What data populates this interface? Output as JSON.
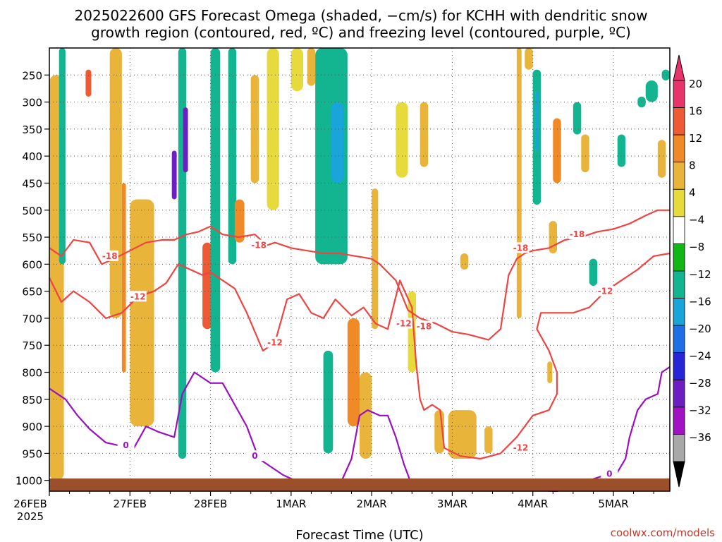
{
  "chart_data": {
    "type": "heatmap",
    "title_line1": "2025022600 GFS Forecast Omega (shaded, −cm/s) for KCHH with dendritic snow",
    "title_line2": "growth region (contoured, red, ºC) and freezing level (contoured, purple, ºC)",
    "xlabel": "Forecast Time (UTC)",
    "credit": "coolwx.com/models",
    "x_ticks": [
      "26FEB",
      "27FEB",
      "28FEB",
      "1MAR",
      "2MAR",
      "3MAR",
      "4MAR",
      "5MAR"
    ],
    "x_year": "2025",
    "x_range_days": [
      0,
      7.7
    ],
    "y_ticks": [
      250,
      300,
      350,
      400,
      450,
      500,
      550,
      600,
      650,
      700,
      750,
      800,
      850,
      900,
      950,
      1000
    ],
    "y_range_hpa": [
      200,
      1020
    ],
    "colorbar": {
      "labels": [
        "20",
        "16",
        "12",
        "8",
        "4",
        "−4",
        "−8",
        "−12",
        "−16",
        "−20",
        "−24",
        "−28",
        "−32",
        "−36"
      ],
      "colors": [
        "#e8336b",
        "#ee5a33",
        "#f08a26",
        "#e8b43a",
        "#e6da3c",
        "#ffffff",
        "#11b717",
        "#12b590",
        "#19a5d9",
        "#1e6fe6",
        "#2626d8",
        "#6c1ec2",
        "#a012c4",
        "#a8a8a8"
      ]
    },
    "shaded_regions": [
      {
        "x0": 0.0,
        "x1": 0.18,
        "p0": 250,
        "p1": 1000,
        "value": 6
      },
      {
        "x0": 0.12,
        "x1": 0.2,
        "p0": 200,
        "p1": 600,
        "value": -10
      },
      {
        "x0": 0.45,
        "x1": 0.52,
        "p0": 240,
        "p1": 290,
        "value": 14
      },
      {
        "x0": 0.75,
        "x1": 0.9,
        "p0": 200,
        "p1": 700,
        "value": 6
      },
      {
        "x0": 0.9,
        "x1": 0.95,
        "p0": 450,
        "p1": 800,
        "value": 10
      },
      {
        "x0": 1.0,
        "x1": 1.3,
        "p0": 480,
        "p1": 900,
        "value": 6
      },
      {
        "x0": 1.52,
        "x1": 1.58,
        "p0": 390,
        "p1": 480,
        "value": -24
      },
      {
        "x0": 1.6,
        "x1": 1.7,
        "p0": 200,
        "p1": 960,
        "value": -10
      },
      {
        "x0": 1.66,
        "x1": 1.72,
        "p0": 310,
        "p1": 430,
        "value": -26
      },
      {
        "x0": 1.9,
        "x1": 2.02,
        "p0": 560,
        "p1": 720,
        "value": 14
      },
      {
        "x0": 2.0,
        "x1": 2.12,
        "p0": 200,
        "p1": 800,
        "value": -10
      },
      {
        "x0": 2.22,
        "x1": 2.32,
        "p0": 200,
        "p1": 600,
        "value": -8
      },
      {
        "x0": 2.3,
        "x1": 2.42,
        "p0": 480,
        "p1": 560,
        "value": 12
      },
      {
        "x0": 2.5,
        "x1": 2.6,
        "p0": 250,
        "p1": 450,
        "value": 6
      },
      {
        "x0": 2.7,
        "x1": 2.85,
        "p0": 200,
        "p1": 500,
        "value": 5
      },
      {
        "x0": 3.0,
        "x1": 3.15,
        "p0": 200,
        "p1": 280,
        "value": 5
      },
      {
        "x0": 3.2,
        "x1": 3.3,
        "p0": 200,
        "p1": 270,
        "value": 6
      },
      {
        "x0": 3.35,
        "x1": 3.45,
        "p0": 250,
        "p1": 330,
        "value": 10
      },
      {
        "x0": 3.3,
        "x1": 3.7,
        "p0": 200,
        "p1": 600,
        "value": -10
      },
      {
        "x0": 3.5,
        "x1": 3.65,
        "p0": 300,
        "p1": 450,
        "value": -14
      },
      {
        "x0": 3.4,
        "x1": 3.52,
        "p0": 760,
        "p1": 950,
        "value": -8
      },
      {
        "x0": 3.7,
        "x1": 3.85,
        "p0": 700,
        "p1": 900,
        "value": 10
      },
      {
        "x0": 3.85,
        "x1": 4.0,
        "p0": 800,
        "p1": 960,
        "value": 6
      },
      {
        "x0": 4.0,
        "x1": 4.08,
        "p0": 460,
        "p1": 720,
        "value": 6
      },
      {
        "x0": 4.3,
        "x1": 4.45,
        "p0": 300,
        "p1": 440,
        "value": 5
      },
      {
        "x0": 4.45,
        "x1": 4.55,
        "p0": 650,
        "p1": 800,
        "value": 5
      },
      {
        "x0": 4.6,
        "x1": 4.7,
        "p0": 300,
        "p1": 420,
        "value": 6
      },
      {
        "x0": 4.78,
        "x1": 4.9,
        "p0": 870,
        "p1": 950,
        "value": 6
      },
      {
        "x0": 5.1,
        "x1": 5.2,
        "p0": 580,
        "p1": 610,
        "value": 6
      },
      {
        "x0": 4.95,
        "x1": 5.3,
        "p0": 870,
        "p1": 960,
        "value": 6
      },
      {
        "x0": 5.4,
        "x1": 5.5,
        "p0": 900,
        "p1": 950,
        "value": 6
      },
      {
        "x0": 5.9,
        "x1": 6.0,
        "p0": 200,
        "p1": 240,
        "value": 6
      },
      {
        "x0": 5.8,
        "x1": 5.86,
        "p0": 200,
        "p1": 700,
        "value": 6
      },
      {
        "x0": 6.0,
        "x1": 6.1,
        "p0": 240,
        "p1": 490,
        "value": -10
      },
      {
        "x0": 6.03,
        "x1": 6.07,
        "p0": 280,
        "p1": 390,
        "value": -14
      },
      {
        "x0": 6.18,
        "x1": 6.24,
        "p0": 780,
        "p1": 820,
        "value": 8
      },
      {
        "x0": 6.2,
        "x1": 6.3,
        "p0": 520,
        "p1": 580,
        "value": 6
      },
      {
        "x0": 6.25,
        "x1": 6.35,
        "p0": 330,
        "p1": 450,
        "value": 12
      },
      {
        "x0": 6.5,
        "x1": 6.6,
        "p0": 300,
        "p1": 360,
        "value": -8
      },
      {
        "x0": 6.6,
        "x1": 6.7,
        "p0": 360,
        "p1": 430,
        "value": 6
      },
      {
        "x0": 6.7,
        "x1": 6.8,
        "p0": 590,
        "p1": 640,
        "value": -8
      },
      {
        "x0": 7.05,
        "x1": 7.15,
        "p0": 360,
        "p1": 420,
        "value": -8
      },
      {
        "x0": 7.3,
        "x1": 7.4,
        "p0": 290,
        "p1": 310,
        "value": -8
      },
      {
        "x0": 7.4,
        "x1": 7.55,
        "p0": 260,
        "p1": 300,
        "value": -8
      },
      {
        "x0": 7.6,
        "x1": 7.7,
        "p0": 240,
        "p1": 260,
        "value": -8
      },
      {
        "x0": 7.55,
        "x1": 7.65,
        "p0": 370,
        "p1": 440,
        "value": 6
      }
    ],
    "contours": [
      {
        "kind": "dgz",
        "level": "-18",
        "points": [
          [
            0,
            570
          ],
          [
            0.15,
            585
          ],
          [
            0.3,
            555
          ],
          [
            0.5,
            560
          ],
          [
            0.65,
            600
          ],
          [
            0.8,
            590
          ],
          [
            1.0,
            575
          ],
          [
            1.2,
            560
          ],
          [
            1.4,
            555
          ],
          [
            1.55,
            555
          ],
          [
            1.7,
            545
          ],
          [
            1.85,
            540
          ],
          [
            2.0,
            530
          ],
          [
            2.15,
            545
          ],
          [
            2.35,
            550
          ],
          [
            2.55,
            545
          ],
          [
            2.7,
            565
          ],
          [
            2.8,
            560
          ],
          [
            3.0,
            570
          ],
          [
            3.2,
            575
          ],
          [
            3.4,
            580
          ],
          [
            3.6,
            580
          ],
          [
            3.8,
            585
          ],
          [
            4.0,
            590
          ],
          [
            4.1,
            600
          ],
          [
            4.3,
            630
          ],
          [
            4.45,
            685
          ],
          [
            4.6,
            700
          ],
          [
            4.8,
            710
          ],
          [
            5.0,
            725
          ],
          [
            5.2,
            730
          ],
          [
            5.45,
            740
          ],
          [
            5.6,
            720
          ],
          [
            5.7,
            620
          ],
          [
            5.8,
            590
          ],
          [
            5.9,
            580
          ],
          [
            6.0,
            575
          ],
          [
            6.2,
            570
          ],
          [
            6.4,
            555
          ],
          [
            6.6,
            550
          ],
          [
            6.8,
            540
          ],
          [
            7.0,
            535
          ],
          [
            7.2,
            525
          ],
          [
            7.4,
            510
          ],
          [
            7.55,
            500
          ],
          [
            7.7,
            500
          ]
        ],
        "label_points": [
          [
            0.75,
            585
          ],
          [
            2.6,
            565
          ],
          [
            4.65,
            715
          ],
          [
            5.85,
            570
          ],
          [
            6.55,
            545
          ]
        ]
      },
      {
        "kind": "dgz",
        "level": "-12",
        "points": [
          [
            0,
            625
          ],
          [
            0.15,
            670
          ],
          [
            0.3,
            650
          ],
          [
            0.5,
            670
          ],
          [
            0.7,
            700
          ],
          [
            0.9,
            690
          ],
          [
            1.1,
            660
          ],
          [
            1.3,
            650
          ],
          [
            1.45,
            635
          ],
          [
            1.6,
            600
          ],
          [
            1.75,
            610
          ],
          [
            1.9,
            620
          ],
          [
            2.0,
            615
          ],
          [
            2.15,
            630
          ],
          [
            2.3,
            645
          ],
          [
            2.45,
            690
          ],
          [
            2.65,
            760
          ],
          [
            2.8,
            745
          ],
          [
            2.95,
            665
          ],
          [
            3.1,
            655
          ],
          [
            3.25,
            690
          ],
          [
            3.4,
            700
          ],
          [
            3.55,
            665
          ],
          [
            3.65,
            680
          ],
          [
            3.75,
            695
          ],
          [
            3.9,
            680
          ],
          [
            4.05,
            710
          ],
          [
            4.2,
            720
          ],
          [
            4.35,
            630
          ],
          [
            4.5,
            680
          ],
          [
            4.55,
            780
          ],
          [
            4.6,
            850
          ],
          [
            4.65,
            870
          ],
          [
            4.75,
            860
          ],
          [
            4.85,
            870
          ],
          [
            4.9,
            940
          ],
          [
            5.1,
            955
          ],
          [
            5.35,
            960
          ],
          [
            5.6,
            950
          ],
          [
            5.8,
            920
          ],
          [
            6.0,
            880
          ],
          [
            6.2,
            870
          ],
          [
            6.3,
            840
          ],
          [
            6.3,
            800
          ],
          [
            6.2,
            760
          ],
          [
            6.05,
            720
          ],
          [
            6.1,
            690
          ],
          [
            6.25,
            690
          ],
          [
            6.5,
            690
          ],
          [
            6.7,
            680
          ],
          [
            6.9,
            650
          ],
          [
            7.1,
            630
          ],
          [
            7.3,
            610
          ],
          [
            7.5,
            585
          ],
          [
            7.7,
            580
          ]
        ],
        "label_points": [
          [
            1.1,
            660
          ],
          [
            2.8,
            745
          ],
          [
            4.4,
            710
          ],
          [
            5.85,
            940
          ],
          [
            6.9,
            650
          ]
        ]
      },
      {
        "kind": "frz",
        "level": "0",
        "points": [
          [
            0,
            830
          ],
          [
            0.2,
            850
          ],
          [
            0.35,
            880
          ],
          [
            0.5,
            905
          ],
          [
            0.7,
            930
          ],
          [
            0.85,
            935
          ],
          [
            1.05,
            940
          ],
          [
            1.2,
            900
          ],
          [
            1.35,
            910
          ],
          [
            1.55,
            920
          ],
          [
            1.65,
            840
          ],
          [
            1.8,
            800
          ],
          [
            2.0,
            820
          ],
          [
            2.15,
            820
          ],
          [
            2.3,
            860
          ],
          [
            2.45,
            900
          ],
          [
            2.6,
            960
          ],
          [
            2.75,
            975
          ],
          [
            2.9,
            990
          ],
          [
            3.05,
            1000
          ],
          [
            3.25,
            1010
          ],
          [
            3.45,
            1015
          ],
          [
            3.6,
            1010
          ],
          [
            3.75,
            960
          ],
          [
            3.85,
            880
          ],
          [
            3.95,
            870
          ],
          [
            4.1,
            880
          ],
          [
            4.2,
            880
          ],
          [
            4.3,
            920
          ],
          [
            4.4,
            970
          ],
          [
            4.5,
            1010
          ],
          [
            6.3,
            1020
          ],
          [
            6.5,
            1010
          ],
          [
            6.7,
            1000
          ],
          [
            6.9,
            990
          ],
          [
            7.05,
            985
          ],
          [
            7.15,
            960
          ],
          [
            7.2,
            920
          ],
          [
            7.3,
            870
          ],
          [
            7.4,
            850
          ],
          [
            7.55,
            840
          ],
          [
            7.6,
            800
          ],
          [
            7.7,
            790
          ]
        ],
        "label_points": [
          [
            0.95,
            935
          ],
          [
            2.55,
            955
          ],
          [
            6.95,
            988
          ]
        ]
      }
    ],
    "terrain_color": "#9b4f2a",
    "dgz_color": "#ee4444",
    "frz_color": "#9a10c0"
  }
}
